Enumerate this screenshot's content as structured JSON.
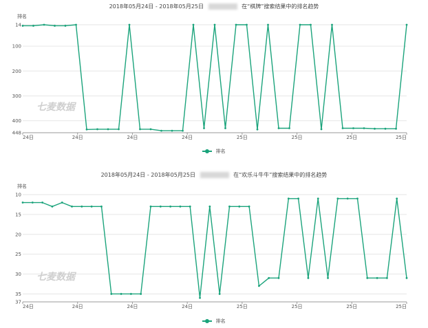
{
  "chart_data": [
    {
      "type": "line",
      "title_prefix": "2018年05月24日 - 2018年05月25日",
      "title_suffix": "在“棋牌”搜索结果中的排名趋势",
      "ylabel": "排名",
      "y_inverted": true,
      "ylim": [
        14,
        448
      ],
      "yticks": [
        "14",
        "100",
        "200",
        "300",
        "400",
        "448"
      ],
      "xticks": [
        "24日",
        "24日",
        "24日",
        "24日",
        "25日",
        "25日",
        "25日",
        "25日"
      ],
      "watermark": "七麦数据",
      "legend": "排名",
      "color": "#1aa37b",
      "series": [
        {
          "name": "排名",
          "values": [
            18,
            18,
            14,
            18,
            18,
            14,
            435,
            434,
            434,
            434,
            14,
            434,
            434,
            440,
            440,
            440,
            14,
            430,
            14,
            430,
            14,
            14,
            435,
            14,
            430,
            430,
            14,
            14,
            434,
            14,
            430,
            430,
            430,
            432,
            432,
            432,
            14
          ]
        }
      ]
    },
    {
      "type": "line",
      "title_prefix": "2018年05月24日 - 2018年05月25日",
      "title_suffix": "在“欢乐斗牛牛”搜索结果中的排名趋势",
      "ylabel": "排名",
      "y_inverted": true,
      "ylim": [
        10,
        37
      ],
      "yticks": [
        "10",
        "15",
        "20",
        "25",
        "30",
        "35",
        "37"
      ],
      "xticks": [
        "24日",
        "24日",
        "24日",
        "24日",
        "25日",
        "25日",
        "25日",
        "25日"
      ],
      "watermark": "七麦数据",
      "legend": "排名",
      "color": "#1aa37b",
      "series": [
        {
          "name": "排名",
          "values": [
            12,
            12,
            12,
            13,
            12,
            13,
            13,
            13,
            13,
            35,
            35,
            35,
            35,
            13,
            13,
            13,
            13,
            13,
            36,
            13,
            35,
            13,
            13,
            13,
            33,
            31,
            31,
            11,
            11,
            31,
            11,
            31,
            11,
            11,
            11,
            31,
            31,
            31,
            11,
            31
          ]
        }
      ]
    }
  ]
}
